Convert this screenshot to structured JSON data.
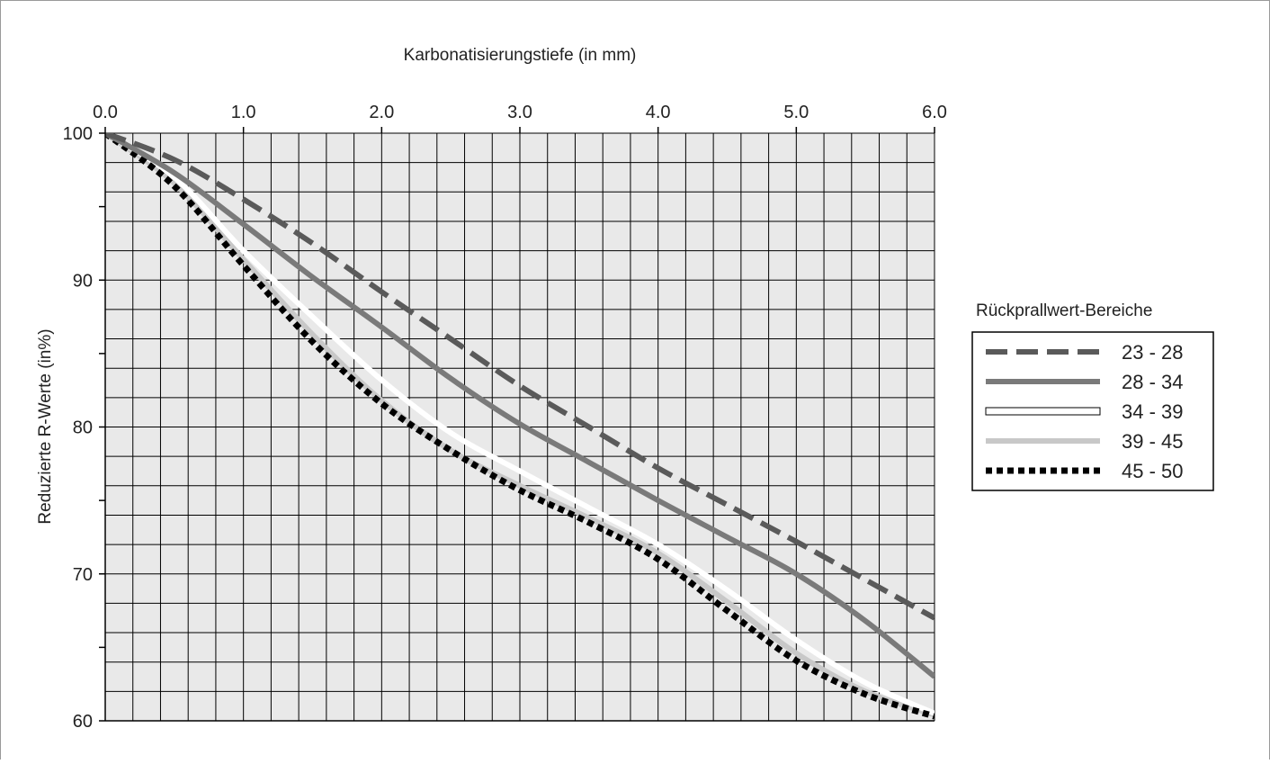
{
  "chart_data": {
    "type": "line",
    "xlabel": "Karbonatisierungstiefe (in mm)",
    "ylabel": "Reduzierte R-Werte (in%)",
    "xlim": [
      0,
      6
    ],
    "ylim": [
      60,
      100
    ],
    "x_ticks": [
      "0.0",
      "1.0",
      "2.0",
      "3.0",
      "4.0",
      "5.0",
      "6.0"
    ],
    "y_ticks": [
      "60",
      "70",
      "80",
      "90",
      "100"
    ],
    "grid": true,
    "legend_title": "Rückprallwert-Bereiche",
    "legend_position": "right",
    "series": [
      {
        "name": "23 - 28",
        "color": "#5a5a5a",
        "style": "dashed",
        "points": [
          [
            0,
            100
          ],
          [
            0.5,
            98.2
          ],
          [
            1.0,
            95.5
          ],
          [
            1.5,
            92.5
          ],
          [
            2.0,
            89.2
          ],
          [
            2.5,
            86.0
          ],
          [
            3.0,
            82.8
          ],
          [
            3.5,
            80.0
          ],
          [
            4.0,
            77.2
          ],
          [
            4.5,
            74.7
          ],
          [
            5.0,
            72.2
          ],
          [
            5.5,
            69.6
          ],
          [
            6.0,
            67.0
          ]
        ]
      },
      {
        "name": "28 - 34",
        "color": "#7a7a7a",
        "style": "solid",
        "points": [
          [
            0,
            100
          ],
          [
            0.5,
            97.3
          ],
          [
            1.0,
            93.8
          ],
          [
            1.5,
            90.2
          ],
          [
            2.0,
            86.8
          ],
          [
            2.5,
            83.3
          ],
          [
            3.0,
            80.2
          ],
          [
            3.5,
            77.6
          ],
          [
            4.0,
            75.0
          ],
          [
            4.5,
            72.5
          ],
          [
            5.0,
            70.0
          ],
          [
            5.5,
            66.8
          ],
          [
            6.0,
            63.0
          ]
        ]
      },
      {
        "name": "34 - 39",
        "color": "#ffffff",
        "style": "white",
        "points": [
          [
            0,
            100
          ],
          [
            0.5,
            97.0
          ],
          [
            1.0,
            92.0
          ],
          [
            1.5,
            87.5
          ],
          [
            2.0,
            83.2
          ],
          [
            2.5,
            79.6
          ],
          [
            3.0,
            77.0
          ],
          [
            3.5,
            74.5
          ],
          [
            4.0,
            72.0
          ],
          [
            4.5,
            68.9
          ],
          [
            5.0,
            65.5
          ],
          [
            5.5,
            62.6
          ],
          [
            6.0,
            60.5
          ]
        ]
      },
      {
        "name": "39 - 45",
        "color": "#c8c8c8",
        "style": "solid",
        "points": [
          [
            0,
            100
          ],
          [
            0.5,
            96.6
          ],
          [
            1.0,
            91.4
          ],
          [
            1.5,
            86.3
          ],
          [
            2.0,
            81.8
          ],
          [
            2.5,
            78.4
          ],
          [
            3.0,
            76.0
          ],
          [
            3.5,
            73.8
          ],
          [
            4.0,
            71.4
          ],
          [
            4.5,
            68.1
          ],
          [
            5.0,
            64.6
          ],
          [
            5.5,
            62.0
          ],
          [
            6.0,
            60.4
          ]
        ]
      },
      {
        "name": "45 - 50",
        "color": "#000000",
        "style": "dotted",
        "points": [
          [
            0,
            100
          ],
          [
            0.5,
            96.4
          ],
          [
            1.0,
            91.0
          ],
          [
            1.5,
            85.8
          ],
          [
            2.0,
            81.6
          ],
          [
            2.5,
            78.4
          ],
          [
            3.0,
            75.7
          ],
          [
            3.5,
            73.5
          ],
          [
            4.0,
            71.0
          ],
          [
            4.5,
            67.5
          ],
          [
            5.0,
            64.1
          ],
          [
            5.5,
            61.8
          ],
          [
            6.0,
            60.3
          ]
        ]
      }
    ]
  }
}
